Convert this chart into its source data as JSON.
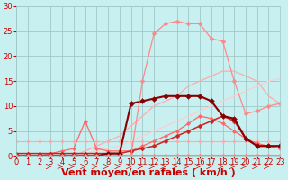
{
  "title": "",
  "xlabel": "Vent moyen/en rafales ( km/h )",
  "ylabel": "",
  "bg_color": "#c8f0f0",
  "grid_color": "#a0c8c8",
  "xlim": [
    0,
    23
  ],
  "ylim": [
    0,
    30
  ],
  "yticks": [
    0,
    5,
    10,
    15,
    20,
    25,
    30
  ],
  "xticks": [
    0,
    1,
    2,
    3,
    4,
    5,
    6,
    7,
    8,
    9,
    10,
    11,
    12,
    13,
    14,
    15,
    16,
    17,
    18,
    19,
    20,
    21,
    22,
    23
  ],
  "series": [
    {
      "x": [
        0,
        1,
        2,
        3,
        4,
        5,
        6,
        7,
        8,
        9,
        10,
        11,
        12,
        13,
        14,
        15,
        16,
        17,
        18,
        19,
        20,
        21,
        22,
        23
      ],
      "y": [
        3,
        3,
        3,
        3,
        3,
        3,
        3,
        3,
        3,
        3,
        3,
        3,
        3,
        3,
        3,
        3,
        3,
        3,
        3,
        3,
        3,
        3,
        3,
        3
      ],
      "color": "#ffaaaa",
      "linewidth": 0.8,
      "marker": "D",
      "markersize": 2.0,
      "linestyle": "-"
    },
    {
      "x": [
        0,
        1,
        2,
        3,
        4,
        5,
        6,
        7,
        8,
        9,
        10,
        11,
        12,
        13,
        14,
        15,
        16,
        17,
        18,
        19,
        20,
        21,
        22,
        23
      ],
      "y": [
        0.2,
        0.2,
        0.2,
        0.2,
        0.2,
        0.2,
        0.2,
        0.2,
        0.2,
        0.2,
        0.2,
        0.2,
        0.2,
        0.2,
        0.2,
        0.2,
        0.2,
        0.2,
        0.2,
        0.2,
        0.2,
        0.2,
        0.2,
        0.2
      ],
      "color": "#ff8888",
      "linewidth": 0.8,
      "marker": "D",
      "markersize": 1.5,
      "linestyle": "-"
    },
    {
      "x": [
        0,
        1,
        2,
        3,
        4,
        5,
        6,
        7,
        8,
        9,
        10,
        11,
        12,
        13,
        14,
        15,
        16,
        17,
        18,
        19,
        20,
        21,
        22,
        23
      ],
      "y": [
        0,
        0,
        0,
        0,
        0,
        0,
        0.5,
        1,
        1.5,
        2,
        3,
        4,
        5,
        6,
        7,
        8,
        9,
        10,
        11,
        12,
        13,
        14,
        15,
        15.5
      ],
      "color": "#ffcccc",
      "linewidth": 0.9,
      "marker": null,
      "linestyle": "-"
    },
    {
      "x": [
        0,
        1,
        2,
        3,
        4,
        5,
        6,
        7,
        8,
        9,
        10,
        11,
        12,
        13,
        14,
        15,
        16,
        17,
        18,
        19,
        20,
        21,
        22,
        23
      ],
      "y": [
        0,
        0,
        0,
        0,
        0,
        0,
        1,
        2,
        3,
        4,
        6,
        8,
        10,
        11,
        12,
        14,
        15,
        16,
        17,
        17,
        16,
        15,
        12,
        10.5
      ],
      "color": "#ffaaaa",
      "linewidth": 0.9,
      "marker": null,
      "linestyle": "-"
    },
    {
      "x": [
        0,
        1,
        2,
        3,
        4,
        5,
        6,
        7,
        8,
        9,
        10,
        11,
        12,
        13,
        14,
        15,
        16,
        17,
        18,
        19,
        20,
        21,
        22,
        23
      ],
      "y": [
        0,
        0,
        0,
        0.5,
        1,
        1.5,
        7,
        1.5,
        1,
        1,
        1,
        2,
        3,
        4,
        5,
        6.5,
        8,
        7.5,
        6.5,
        5,
        3.5,
        2.5,
        2,
        1.5
      ],
      "color": "#ff6666",
      "linewidth": 0.9,
      "marker": "D",
      "markersize": 2.2,
      "linestyle": "-"
    },
    {
      "x": [
        0,
        1,
        2,
        3,
        4,
        5,
        6,
        7,
        8,
        9,
        10,
        11,
        12,
        13,
        14,
        15,
        16,
        17,
        18,
        19,
        20,
        21,
        22,
        23
      ],
      "y": [
        0.5,
        0.5,
        0.5,
        0.5,
        0.5,
        0.5,
        0.5,
        0.5,
        0.5,
        0.5,
        1,
        1.5,
        2,
        3,
        4,
        5,
        6,
        7,
        8,
        7,
        3.5,
        2,
        2,
        2
      ],
      "color": "#cc2222",
      "linewidth": 1.1,
      "marker": "D",
      "markersize": 2.5,
      "linestyle": "-"
    },
    {
      "x": [
        0,
        1,
        2,
        3,
        4,
        5,
        6,
        7,
        8,
        9,
        10,
        11,
        12,
        13,
        14,
        15,
        16,
        17,
        18,
        19,
        20,
        21,
        22,
        23
      ],
      "y": [
        0,
        0,
        0,
        0,
        0,
        0,
        0,
        0,
        0.5,
        0.5,
        10.5,
        11,
        11.5,
        12,
        12,
        12,
        12,
        11,
        8,
        7.5,
        3.5,
        2,
        2,
        2
      ],
      "color": "#880000",
      "linewidth": 1.5,
      "marker": "D",
      "markersize": 3,
      "linestyle": "-"
    },
    {
      "x": [
        0,
        1,
        2,
        3,
        4,
        5,
        6,
        7,
        8,
        9,
        10,
        11,
        12,
        13,
        14,
        15,
        16,
        17,
        18,
        19,
        20,
        21,
        22,
        23
      ],
      "y": [
        0,
        0,
        0,
        0,
        0,
        0,
        0,
        0,
        0,
        0,
        0,
        15,
        24.5,
        26.5,
        27,
        26.5,
        26.5,
        23.5,
        23,
        15,
        8.5,
        9,
        10,
        10.5
      ],
      "color": "#ff8888",
      "linewidth": 0.9,
      "marker": "D",
      "markersize": 2.5,
      "linestyle": "-"
    }
  ],
  "xlabel_color": "#cc0000",
  "xlabel_fontsize": 8,
  "tick_color": "#cc0000",
  "tick_fontsize": 6,
  "ytick_color": "#cc0000"
}
